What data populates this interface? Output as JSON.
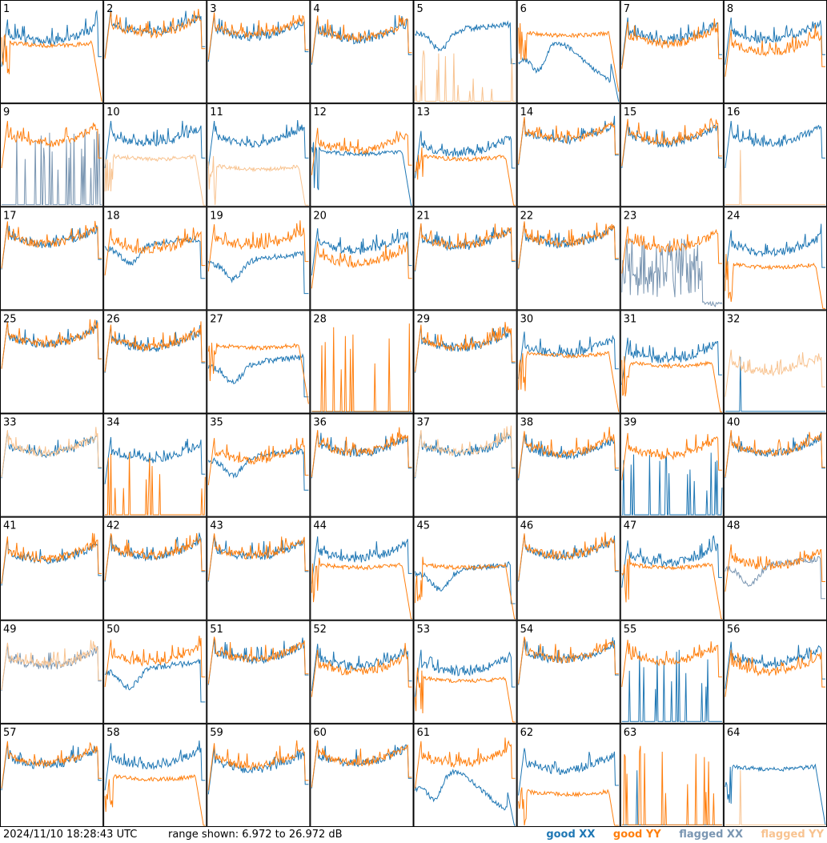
{
  "footer": {
    "timestamp": "2024/11/10 18:28:43 UTC",
    "range_text": "range shown: 6.972 to 26.972 dB"
  },
  "legend": [
    {
      "label": "good XX",
      "color": "#1f77b4"
    },
    {
      "label": "good YY",
      "color": "#ff7f0e"
    },
    {
      "label": "flagged XX",
      "color": "#7a96b2"
    },
    {
      "label": "flagged YY",
      "color": "#f8c390"
    }
  ],
  "chart_data": {
    "type": "line",
    "ylim": [
      6.972,
      26.972
    ],
    "grid": {
      "rows": 8,
      "cols": 8
    },
    "colors": {
      "good_xx": "#1f77b4",
      "good_yy": "#ff7f0e",
      "flagged_xx": "#7a96b2",
      "flagged_yy": "#f8c390"
    },
    "panels": [
      {
        "label": "1",
        "xx": {
          "status": "good",
          "shape": "ripple",
          "level": 0.7
        },
        "yy": {
          "status": "good",
          "shape": "flatdrop",
          "level": 0.6
        }
      },
      {
        "label": "2",
        "xx": {
          "status": "good",
          "shape": "ripple",
          "level": 0.8
        },
        "yy": {
          "status": "good",
          "shape": "ripple",
          "level": 0.78
        }
      },
      {
        "label": "3",
        "xx": {
          "status": "good",
          "shape": "ripple",
          "level": 0.75
        },
        "yy": {
          "status": "good",
          "shape": "ripple",
          "level": 0.77
        }
      },
      {
        "label": "4",
        "xx": {
          "status": "good",
          "shape": "ripple",
          "level": 0.72
        },
        "yy": {
          "status": "good",
          "shape": "ripple",
          "level": 0.74
        }
      },
      {
        "label": "5",
        "xx": {
          "status": "good",
          "shape": "dip",
          "level": 0.68
        },
        "yy": {
          "status": "flagged",
          "shape": "spikes",
          "level": 0.1
        }
      },
      {
        "label": "6",
        "xx": {
          "status": "good",
          "shape": "deepdip",
          "level": 0.4
        },
        "yy": {
          "status": "good",
          "shape": "flatdrop",
          "level": 0.7
        }
      },
      {
        "label": "7",
        "xx": {
          "status": "good",
          "shape": "ripple",
          "level": 0.72
        },
        "yy": {
          "status": "good",
          "shape": "ripple",
          "level": 0.68
        }
      },
      {
        "label": "8",
        "xx": {
          "status": "good",
          "shape": "ripple",
          "level": 0.72
        },
        "yy": {
          "status": "good",
          "shape": "ripple",
          "level": 0.6
        }
      },
      {
        "label": "9",
        "xx": {
          "status": "flagged",
          "shape": "spikes",
          "level": 0.3
        },
        "yy": {
          "status": "good",
          "shape": "ripple",
          "level": 0.72
        }
      },
      {
        "label": "10",
        "xx": {
          "status": "good",
          "shape": "ripple",
          "level": 0.72
        },
        "yy": {
          "status": "flagged",
          "shape": "flatdrop",
          "level": 0.5
        }
      },
      {
        "label": "11",
        "xx": {
          "status": "good",
          "shape": "ripple",
          "level": 0.72
        },
        "yy": {
          "status": "flagged",
          "shape": "flatdrop",
          "level": 0.4
        }
      },
      {
        "label": "12",
        "xx": {
          "status": "good",
          "shape": "flatdrop",
          "level": 0.55
        },
        "yy": {
          "status": "good",
          "shape": "ripple",
          "level": 0.65
        }
      },
      {
        "label": "13",
        "xx": {
          "status": "good",
          "shape": "ripple",
          "level": 0.62
        },
        "yy": {
          "status": "good",
          "shape": "flatdrop",
          "level": 0.5
        }
      },
      {
        "label": "14",
        "xx": {
          "status": "good",
          "shape": "ripple",
          "level": 0.75
        },
        "yy": {
          "status": "good",
          "shape": "ripple",
          "level": 0.76
        }
      },
      {
        "label": "15",
        "xx": {
          "status": "good",
          "shape": "ripple",
          "level": 0.72
        },
        "yy": {
          "status": "good",
          "shape": "ripple",
          "level": 0.74
        }
      },
      {
        "label": "16",
        "xx": {
          "status": "good",
          "shape": "ripple",
          "level": 0.72
        },
        "yy": {
          "status": "flagged",
          "shape": "spike1",
          "level": 0.05
        }
      },
      {
        "label": "17",
        "xx": {
          "status": "good",
          "shape": "ripple",
          "level": 0.74
        },
        "yy": {
          "status": "good",
          "shape": "ripple",
          "level": 0.75
        }
      },
      {
        "label": "18",
        "xx": {
          "status": "good",
          "shape": "dip",
          "level": 0.6
        },
        "yy": {
          "status": "good",
          "shape": "ripple",
          "level": 0.68
        }
      },
      {
        "label": "19",
        "xx": {
          "status": "good",
          "shape": "dip",
          "level": 0.45
        },
        "yy": {
          "status": "good",
          "shape": "ripple",
          "level": 0.72
        }
      },
      {
        "label": "20",
        "xx": {
          "status": "good",
          "shape": "ripple",
          "level": 0.68
        },
        "yy": {
          "status": "good",
          "shape": "ripple",
          "level": 0.55
        }
      },
      {
        "label": "21",
        "xx": {
          "status": "good",
          "shape": "ripple",
          "level": 0.72
        },
        "yy": {
          "status": "good",
          "shape": "ripple",
          "level": 0.73
        }
      },
      {
        "label": "22",
        "xx": {
          "status": "good",
          "shape": "ripple",
          "level": 0.74
        },
        "yy": {
          "status": "good",
          "shape": "ripple",
          "level": 0.75
        }
      },
      {
        "label": "23",
        "xx": {
          "status": "flagged",
          "shape": "noisy",
          "level": 0.4
        },
        "yy": {
          "status": "good",
          "shape": "ripple",
          "level": 0.7
        }
      },
      {
        "label": "24",
        "xx": {
          "status": "good",
          "shape": "ripple",
          "level": 0.66
        },
        "yy": {
          "status": "good",
          "shape": "flatdrop",
          "level": 0.45
        }
      },
      {
        "label": "25",
        "xx": {
          "status": "good",
          "shape": "ripple",
          "level": 0.78
        },
        "yy": {
          "status": "good",
          "shape": "ripple",
          "level": 0.78
        }
      },
      {
        "label": "26",
        "xx": {
          "status": "good",
          "shape": "ripple",
          "level": 0.74
        },
        "yy": {
          "status": "good",
          "shape": "ripple",
          "level": 0.75
        }
      },
      {
        "label": "27",
        "xx": {
          "status": "good",
          "shape": "dip",
          "level": 0.45
        },
        "yy": {
          "status": "good",
          "shape": "flatdrop",
          "level": 0.68
        }
      },
      {
        "label": "28",
        "xx": {
          "status": "good",
          "shape": "flat",
          "level": 0.0
        },
        "yy": {
          "status": "good",
          "shape": "spikes",
          "level": 0.4
        }
      },
      {
        "label": "29",
        "xx": {
          "status": "good",
          "shape": "ripple",
          "level": 0.74
        },
        "yy": {
          "status": "good",
          "shape": "ripple",
          "level": 0.75
        }
      },
      {
        "label": "30",
        "xx": {
          "status": "good",
          "shape": "ripple",
          "level": 0.68
        },
        "yy": {
          "status": "good",
          "shape": "flatdrop",
          "level": 0.6
        }
      },
      {
        "label": "31",
        "xx": {
          "status": "good",
          "shape": "ripple",
          "level": 0.62
        },
        "yy": {
          "status": "good",
          "shape": "flatdrop",
          "level": 0.5
        }
      },
      {
        "label": "32",
        "xx": {
          "status": "good",
          "shape": "spike1",
          "level": 0.05
        },
        "yy": {
          "status": "flagged",
          "shape": "ripple",
          "level": 0.5
        }
      },
      {
        "label": "33",
        "xx": {
          "status": "good",
          "shape": "ripple",
          "level": 0.72
        },
        "yy": {
          "status": "flagged",
          "shape": "ripple",
          "level": 0.73
        }
      },
      {
        "label": "34",
        "xx": {
          "status": "good",
          "shape": "ripple",
          "level": 0.66
        },
        "yy": {
          "status": "good",
          "shape": "spikes",
          "level": 0.2
        }
      },
      {
        "label": "35",
        "xx": {
          "status": "good",
          "shape": "dip",
          "level": 0.55
        },
        "yy": {
          "status": "good",
          "shape": "ripple",
          "level": 0.65
        }
      },
      {
        "label": "36",
        "xx": {
          "status": "good",
          "shape": "ripple",
          "level": 0.72
        },
        "yy": {
          "status": "good",
          "shape": "ripple",
          "level": 0.73
        }
      },
      {
        "label": "37",
        "xx": {
          "status": "good",
          "shape": "ripple",
          "level": 0.72
        },
        "yy": {
          "status": "flagged",
          "shape": "ripple",
          "level": 0.73
        }
      },
      {
        "label": "38",
        "xx": {
          "status": "good",
          "shape": "ripple",
          "level": 0.7
        },
        "yy": {
          "status": "good",
          "shape": "ripple",
          "level": 0.72
        }
      },
      {
        "label": "39",
        "xx": {
          "status": "good",
          "shape": "spikes",
          "level": 0.2
        },
        "yy": {
          "status": "good",
          "shape": "ripple",
          "level": 0.7
        }
      },
      {
        "label": "40",
        "xx": {
          "status": "good",
          "shape": "ripple",
          "level": 0.72
        },
        "yy": {
          "status": "good",
          "shape": "ripple",
          "level": 0.73
        }
      },
      {
        "label": "41",
        "xx": {
          "status": "good",
          "shape": "ripple",
          "level": 0.68
        },
        "yy": {
          "status": "good",
          "shape": "ripple",
          "level": 0.7
        }
      },
      {
        "label": "42",
        "xx": {
          "status": "good",
          "shape": "ripple",
          "level": 0.72
        },
        "yy": {
          "status": "good",
          "shape": "ripple",
          "level": 0.73
        }
      },
      {
        "label": "43",
        "xx": {
          "status": "good",
          "shape": "ripple",
          "level": 0.72
        },
        "yy": {
          "status": "good",
          "shape": "ripple",
          "level": 0.73
        }
      },
      {
        "label": "44",
        "xx": {
          "status": "good",
          "shape": "ripple",
          "level": 0.7
        },
        "yy": {
          "status": "good",
          "shape": "flatdrop",
          "level": 0.55
        }
      },
      {
        "label": "45",
        "xx": {
          "status": "good",
          "shape": "dip",
          "level": 0.45
        },
        "yy": {
          "status": "good",
          "shape": "flatdrop",
          "level": 0.55
        }
      },
      {
        "label": "46",
        "xx": {
          "status": "good",
          "shape": "ripple",
          "level": 0.72
        },
        "yy": {
          "status": "good",
          "shape": "ripple",
          "level": 0.73
        }
      },
      {
        "label": "47",
        "xx": {
          "status": "good",
          "shape": "ripple",
          "level": 0.66
        },
        "yy": {
          "status": "good",
          "shape": "flatdrop",
          "level": 0.55
        }
      },
      {
        "label": "48",
        "xx": {
          "status": "flagged",
          "shape": "dip",
          "level": 0.5
        },
        "yy": {
          "status": "good",
          "shape": "ripple",
          "level": 0.62
        }
      },
      {
        "label": "49",
        "xx": {
          "status": "flagged",
          "shape": "ripple",
          "level": 0.66
        },
        "yy": {
          "status": "flagged",
          "shape": "ripple",
          "level": 0.67
        }
      },
      {
        "label": "50",
        "xx": {
          "status": "good",
          "shape": "dip",
          "level": 0.5
        },
        "yy": {
          "status": "good",
          "shape": "ripple",
          "level": 0.7
        }
      },
      {
        "label": "51",
        "xx": {
          "status": "good",
          "shape": "ripple",
          "level": 0.72
        },
        "yy": {
          "status": "good",
          "shape": "ripple",
          "level": 0.73
        }
      },
      {
        "label": "52",
        "xx": {
          "status": "good",
          "shape": "ripple",
          "level": 0.66
        },
        "yy": {
          "status": "good",
          "shape": "ripple",
          "level": 0.6
        }
      },
      {
        "label": "53",
        "xx": {
          "status": "good",
          "shape": "ripple",
          "level": 0.6
        },
        "yy": {
          "status": "good",
          "shape": "flatdrop",
          "level": 0.45
        }
      },
      {
        "label": "54",
        "xx": {
          "status": "good",
          "shape": "ripple",
          "level": 0.72
        },
        "yy": {
          "status": "good",
          "shape": "ripple",
          "level": 0.73
        }
      },
      {
        "label": "55",
        "xx": {
          "status": "good",
          "shape": "spikes",
          "level": 0.3
        },
        "yy": {
          "status": "good",
          "shape": "ripple",
          "level": 0.7
        }
      },
      {
        "label": "56",
        "xx": {
          "status": "good",
          "shape": "ripple",
          "level": 0.68
        },
        "yy": {
          "status": "good",
          "shape": "ripple",
          "level": 0.6
        }
      },
      {
        "label": "57",
        "xx": {
          "status": "good",
          "shape": "ripple",
          "level": 0.7
        },
        "yy": {
          "status": "good",
          "shape": "ripple",
          "level": 0.72
        }
      },
      {
        "label": "58",
        "xx": {
          "status": "good",
          "shape": "ripple",
          "level": 0.7
        },
        "yy": {
          "status": "good",
          "shape": "flatdrop",
          "level": 0.5
        }
      },
      {
        "label": "59",
        "xx": {
          "status": "good",
          "shape": "ripple",
          "level": 0.66
        },
        "yy": {
          "status": "good",
          "shape": "ripple",
          "level": 0.7
        }
      },
      {
        "label": "60",
        "xx": {
          "status": "good",
          "shape": "ripple",
          "level": 0.72
        },
        "yy": {
          "status": "good",
          "shape": "ripple",
          "level": 0.73
        }
      },
      {
        "label": "61",
        "xx": {
          "status": "good",
          "shape": "deepdip",
          "level": 0.35
        },
        "yy": {
          "status": "good",
          "shape": "ripple",
          "level": 0.72
        }
      },
      {
        "label": "62",
        "xx": {
          "status": "good",
          "shape": "ripple",
          "level": 0.65
        },
        "yy": {
          "status": "good",
          "shape": "flatdrop",
          "level": 0.35
        }
      },
      {
        "label": "63",
        "xx": {
          "status": "good",
          "shape": "spike1",
          "level": 0.05
        },
        "yy": {
          "status": "good",
          "shape": "spikes",
          "level": 0.3
        }
      },
      {
        "label": "64",
        "xx": {
          "status": "good",
          "shape": "flatdrop",
          "level": 0.6
        },
        "yy": {
          "status": "flagged",
          "shape": "spike1",
          "level": 0.05
        }
      }
    ]
  }
}
